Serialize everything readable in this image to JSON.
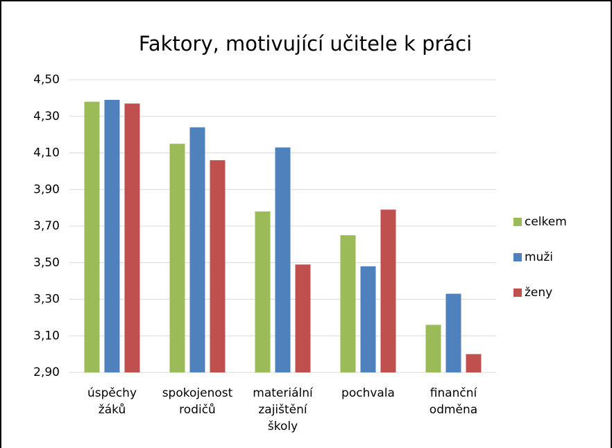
{
  "chart_data": {
    "type": "bar",
    "title": "Faktory, motivující učitele k práci",
    "categories": [
      "úspěchy žáků",
      "spokojenost rodičů",
      "materiální zajištění školy",
      "pochvala",
      "finanční odměna"
    ],
    "series": [
      {
        "name": "celkem",
        "color": "#9bbb59",
        "values": [
          4.38,
          4.15,
          3.78,
          3.65,
          3.16
        ]
      },
      {
        "name": "muži",
        "color": "#4f81bd",
        "values": [
          4.39,
          4.24,
          4.13,
          3.48,
          3.33
        ]
      },
      {
        "name": "ženy",
        "color": "#c0504d",
        "values": [
          4.37,
          4.06,
          3.49,
          3.79,
          3.0
        ]
      }
    ],
    "ylim": [
      2.9,
      4.5
    ],
    "yticks": [
      {
        "value": 2.9,
        "label": "2,90"
      },
      {
        "value": 3.1,
        "label": "3,10"
      },
      {
        "value": 3.3,
        "label": "3,30"
      },
      {
        "value": 3.5,
        "label": "3,50"
      },
      {
        "value": 3.7,
        "label": "3,70"
      },
      {
        "value": 3.9,
        "label": "3,90"
      },
      {
        "value": 4.1,
        "label": "4,10"
      },
      {
        "value": 4.3,
        "label": "4,30"
      },
      {
        "value": 4.5,
        "label": "4,50"
      }
    ],
    "grid": true,
    "legend": "right"
  }
}
